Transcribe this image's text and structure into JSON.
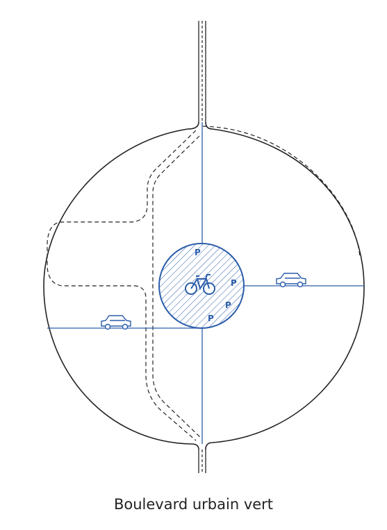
{
  "caption": "Boulevard urbain vert",
  "parking_symbol": "P",
  "icons": {
    "bike": "bicycle-icon",
    "car": "car-icon"
  },
  "colors": {
    "outline": "#222222",
    "network_blue": "#2a5caa",
    "hatch_blue": "#2a5caa"
  }
}
